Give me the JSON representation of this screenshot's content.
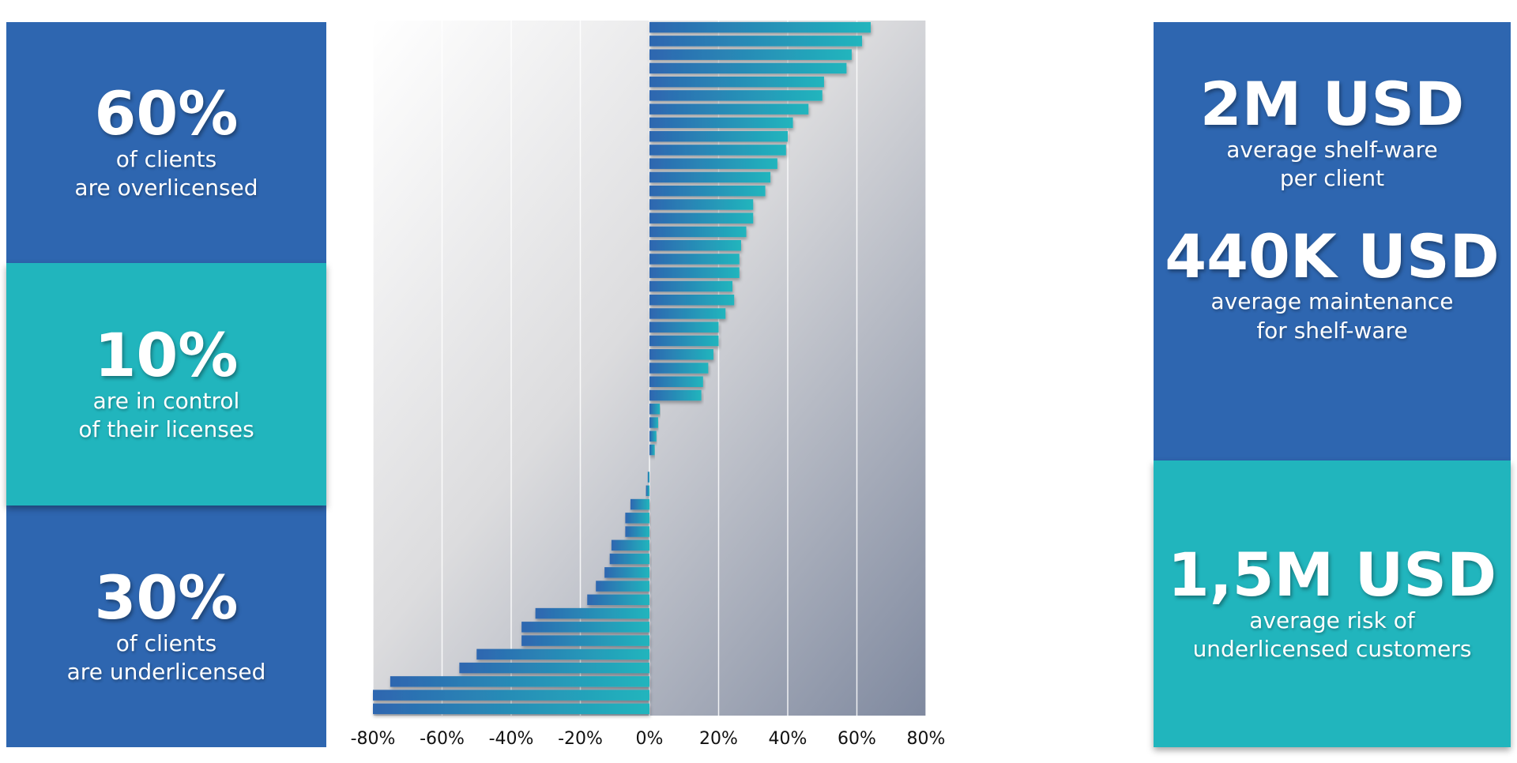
{
  "left_panels": [
    {
      "headline": "60%",
      "line1": "of clients",
      "line2": "are overlicensed"
    },
    {
      "headline": "10%",
      "line1": "are in control",
      "line2": "of their licenses"
    },
    {
      "headline": "30%",
      "line1": "of clients",
      "line2": "are underlicensed"
    }
  ],
  "right_panels": {
    "top": [
      {
        "headline": "2M USD",
        "line1": "average shelf-ware",
        "line2": "per client"
      },
      {
        "headline": "440K USD",
        "line1": "average maintenance",
        "line2": "for shelf-ware"
      }
    ],
    "bottom": {
      "headline": "1,5M USD",
      "line1": "average risk of",
      "line2": "underlicensed customers"
    }
  },
  "colors": {
    "blue": "#2e66b0",
    "teal": "#21b5bd"
  },
  "chart_data": {
    "type": "bar",
    "orientation": "horizontal",
    "xlim": [
      -80,
      80
    ],
    "x_ticks": [
      "-80%",
      "-60%",
      "-40%",
      "-20%",
      "0%",
      "20%",
      "40%",
      "60%",
      "80%"
    ],
    "grid": true,
    "values": [
      64,
      61.5,
      58.5,
      57,
      50.5,
      50,
      46,
      41.5,
      40,
      39.5,
      37,
      35,
      33.5,
      30,
      30,
      28,
      26.5,
      26,
      26,
      24,
      24.5,
      22,
      20,
      20,
      18.5,
      17,
      15.5,
      15,
      3,
      2.5,
      2,
      1.5,
      0,
      -0.5,
      -1,
      -5.5,
      -7,
      -7,
      -11,
      -11.5,
      -13,
      -15.5,
      -18,
      -33,
      -37,
      -37,
      -50,
      -55,
      -75,
      -80,
      -80
    ]
  }
}
